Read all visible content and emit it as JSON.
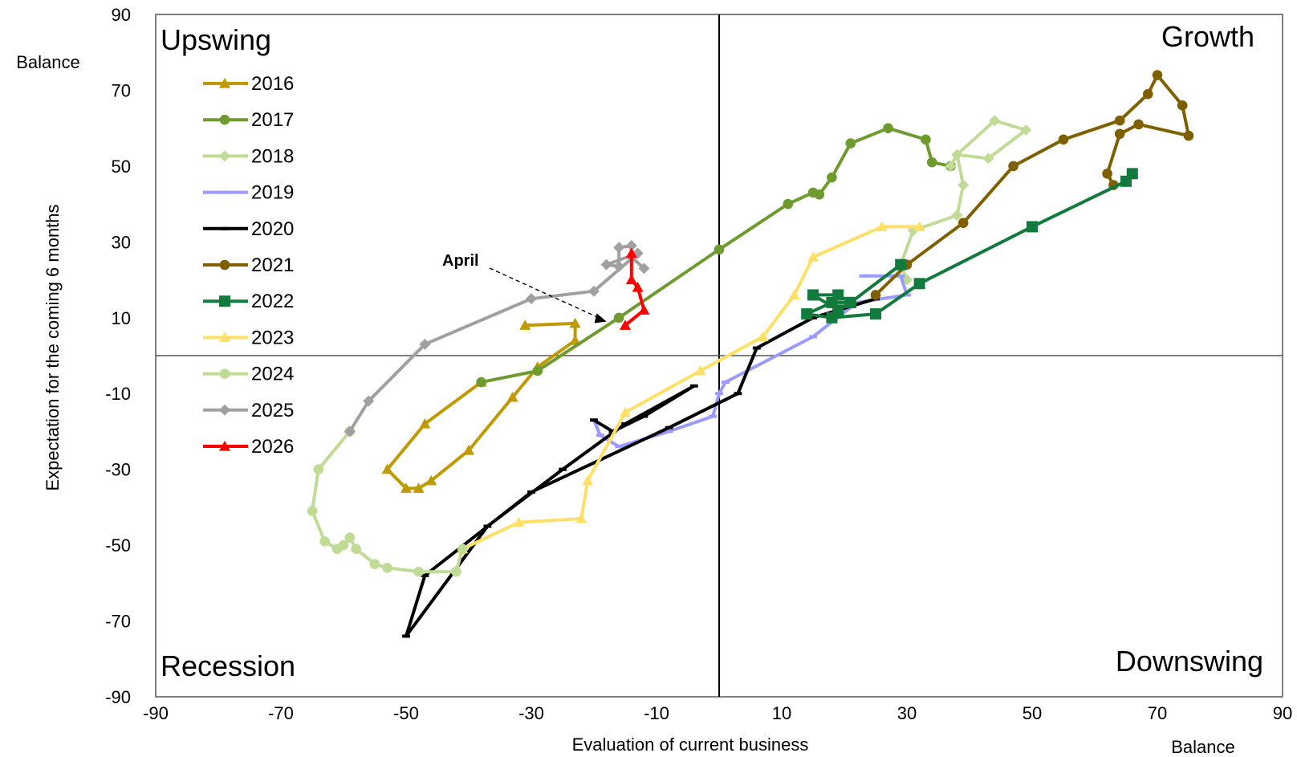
{
  "chart_data": {
    "type": "line",
    "title": "",
    "xlabel": "Evaluation  of current business",
    "ylabel": "Expectation for the coming 6 months",
    "x_unit_label": "Balance",
    "y_unit_label": "Balance",
    "xlim": [
      -90,
      90
    ],
    "ylim": [
      -90,
      90
    ],
    "xticks": [
      -90,
      -70,
      -50,
      -30,
      -10,
      10,
      30,
      50,
      70,
      90
    ],
    "yticks": [
      -90,
      -70,
      -50,
      -30,
      -10,
      10,
      30,
      50,
      70,
      90
    ],
    "quadrant_labels": {
      "top_left": "Upswing",
      "top_right": "Growth",
      "bottom_left": "Recession",
      "bottom_right": "Downswing"
    },
    "annotation": {
      "text": "April",
      "x": -18,
      "y": 9
    },
    "legend_position": "top-left",
    "grid": false,
    "series": [
      {
        "name": "2016",
        "color": "#c09a00",
        "marker": "triangle",
        "points": [
          [
            -31,
            8
          ],
          [
            -23,
            8.5
          ],
          [
            -23,
            4
          ],
          [
            -29,
            -3
          ],
          [
            -33,
            -11
          ],
          [
            -40,
            -25
          ],
          [
            -46,
            -33
          ],
          [
            -48,
            -35
          ],
          [
            -50,
            -35
          ],
          [
            -53,
            -30
          ],
          [
            -47,
            -18
          ],
          [
            -38,
            -7
          ]
        ]
      },
      {
        "name": "2017",
        "color": "#6e9a2f",
        "marker": "circle",
        "points": [
          [
            -38,
            -7
          ],
          [
            -29,
            -4
          ],
          [
            -16,
            10
          ],
          [
            0,
            28
          ],
          [
            11,
            40
          ],
          [
            15,
            43
          ],
          [
            16,
            42.5
          ],
          [
            18,
            47
          ],
          [
            21,
            56
          ],
          [
            27,
            60
          ],
          [
            33,
            57
          ],
          [
            34,
            51
          ],
          [
            37,
            50
          ]
        ]
      },
      {
        "name": "2018",
        "color": "#c0db96",
        "marker": "diamond",
        "points": [
          [
            37,
            50
          ],
          [
            38,
            53
          ],
          [
            44,
            62
          ],
          [
            49,
            59.5
          ],
          [
            43,
            52
          ],
          [
            38,
            53
          ],
          [
            39,
            45
          ],
          [
            38,
            37
          ],
          [
            31,
            33
          ],
          [
            29,
            24
          ],
          [
            30,
            20
          ]
        ]
      },
      {
        "name": "2019",
        "color": "#9b9bff",
        "marker": "dash",
        "points": [
          [
            23,
            21
          ],
          [
            29,
            21
          ],
          [
            30,
            16
          ],
          [
            22,
            14
          ],
          [
            15,
            5
          ],
          [
            1,
            -7
          ],
          [
            0,
            -10
          ],
          [
            -1,
            -16
          ],
          [
            -8,
            -20
          ],
          [
            -16,
            -24
          ],
          [
            -19,
            -21
          ],
          [
            -20,
            -17
          ]
        ]
      },
      {
        "name": "2020",
        "color": "#000000",
        "marker": "dash",
        "points": [
          [
            -20,
            -17
          ],
          [
            -17,
            -20
          ],
          [
            -12,
            -16
          ],
          [
            -4,
            -8
          ],
          [
            -15,
            -18
          ],
          [
            -25,
            -30
          ],
          [
            -37,
            -45
          ],
          [
            -50,
            -74
          ],
          [
            -47,
            -58
          ],
          [
            -30,
            -36
          ],
          [
            -8,
            -19
          ],
          [
            3,
            -10
          ],
          [
            6,
            2
          ],
          [
            15,
            10
          ],
          [
            25,
            15
          ]
        ]
      },
      {
        "name": "2021",
        "color": "#7f6000",
        "marker": "circle",
        "points": [
          [
            25,
            16
          ],
          [
            30,
            24
          ],
          [
            39,
            35
          ],
          [
            47,
            50
          ],
          [
            55,
            57
          ],
          [
            64,
            62
          ],
          [
            68.5,
            69
          ],
          [
            70,
            74
          ],
          [
            74,
            66
          ],
          [
            75,
            58
          ],
          [
            67,
            61
          ],
          [
            64,
            58.5
          ],
          [
            62,
            48
          ],
          [
            63,
            45
          ]
        ]
      },
      {
        "name": "2022",
        "color": "#117a3c",
        "marker": "square",
        "points": [
          [
            66,
            48
          ],
          [
            65,
            46
          ],
          [
            50,
            34
          ],
          [
            32,
            19
          ],
          [
            25,
            11
          ],
          [
            18,
            10
          ],
          [
            14,
            11
          ],
          [
            18,
            14
          ],
          [
            21,
            14
          ],
          [
            19,
            16
          ],
          [
            15,
            16
          ],
          [
            19,
            12
          ],
          [
            21,
            14
          ],
          [
            29,
            24
          ]
        ]
      },
      {
        "name": "2023",
        "color": "#ffe066",
        "marker": "triangle",
        "points": [
          [
            32,
            34
          ],
          [
            26,
            34
          ],
          [
            15,
            26
          ],
          [
            12,
            16
          ],
          [
            7,
            5
          ],
          [
            -3,
            -4
          ],
          [
            -15,
            -15
          ],
          [
            -21,
            -33
          ],
          [
            -22,
            -43
          ],
          [
            -32,
            -44
          ],
          [
            -41,
            -51
          ]
        ]
      },
      {
        "name": "2024",
        "color": "#c0db96",
        "marker": "circle",
        "points": [
          [
            -41,
            -51
          ],
          [
            -42,
            -57
          ],
          [
            -48,
            -57
          ],
          [
            -53,
            -56
          ],
          [
            -55,
            -55
          ],
          [
            -58,
            -51
          ],
          [
            -59,
            -48
          ],
          [
            -60,
            -50
          ],
          [
            -61,
            -51
          ],
          [
            -63,
            -49
          ],
          [
            -65,
            -41
          ],
          [
            -64,
            -30
          ],
          [
            -59,
            -20
          ]
        ]
      },
      {
        "name": "2025",
        "color": "#a0a0a0",
        "marker": "diamond",
        "points": [
          [
            -59,
            -20
          ],
          [
            -56,
            -12
          ],
          [
            -47,
            3
          ],
          [
            -30,
            15
          ],
          [
            -20,
            17
          ],
          [
            -13,
            27
          ],
          [
            -18,
            24
          ],
          [
            -16,
            23.5
          ],
          [
            -16,
            28.5
          ],
          [
            -14,
            29
          ],
          [
            -14,
            26
          ],
          [
            -12,
            23
          ]
        ]
      },
      {
        "name": "2026",
        "color": "#ff0000",
        "marker": "triangle",
        "points": [
          [
            -14,
            27
          ],
          [
            -14,
            20
          ],
          [
            -13,
            18
          ],
          [
            -12,
            12
          ],
          [
            -15,
            8
          ]
        ]
      }
    ]
  }
}
